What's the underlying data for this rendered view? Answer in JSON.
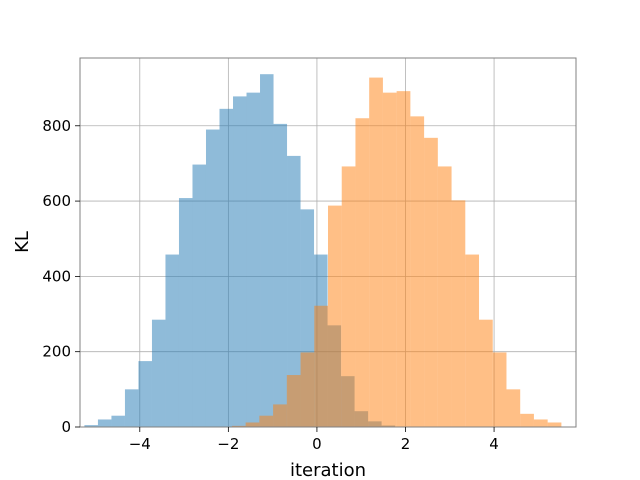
{
  "chart_data": {
    "type": "bar",
    "title": "",
    "xlabel": "iteration",
    "ylabel": "KL",
    "xlim": [
      -5.35,
      5.85
    ],
    "ylim": [
      0,
      980
    ],
    "xticks": [
      -4,
      -2,
      0,
      2,
      4
    ],
    "xtick_labels": [
      "−4",
      "−2",
      "0",
      "2",
      "4"
    ],
    "yticks": [
      0,
      200,
      400,
      600,
      800
    ],
    "ytick_labels": [
      "0",
      "200",
      "400",
      "600",
      "800"
    ],
    "grid": true,
    "legend": null,
    "series": [
      {
        "color": "#1f77b4",
        "opacity": 0.5,
        "bin_width": 0.305,
        "bin_starts": [
          -5.25,
          -4.945,
          -4.64,
          -4.335,
          -4.03,
          -3.725,
          -3.42,
          -3.115,
          -2.81,
          -2.505,
          -2.2,
          -1.895,
          -1.59,
          -1.285,
          -0.98,
          -0.675,
          -0.37,
          -0.065,
          0.24,
          0.545,
          0.85,
          1.155,
          1.46,
          1.765
        ],
        "counts": [
          5,
          20,
          30,
          100,
          175,
          285,
          458,
          608,
          697,
          790,
          845,
          878,
          888,
          937,
          805,
          720,
          578,
          458,
          270,
          135,
          42,
          15,
          4,
          1
        ]
      },
      {
        "color": "#ff7f0e",
        "opacity": 0.5,
        "bin_width": 0.31,
        "bin_starts": [
          -1.92,
          -1.61,
          -1.3,
          -0.99,
          -0.68,
          -0.37,
          -0.06,
          0.25,
          0.56,
          0.87,
          1.18,
          1.49,
          1.8,
          2.11,
          2.42,
          2.73,
          3.04,
          3.35,
          3.66,
          3.97,
          4.28,
          4.59,
          4.9,
          5.21
        ],
        "counts": [
          3,
          12,
          30,
          60,
          138,
          198,
          322,
          588,
          692,
          820,
          928,
          888,
          892,
          825,
          768,
          692,
          602,
          458,
          285,
          198,
          100,
          35,
          20,
          12
        ]
      }
    ]
  }
}
